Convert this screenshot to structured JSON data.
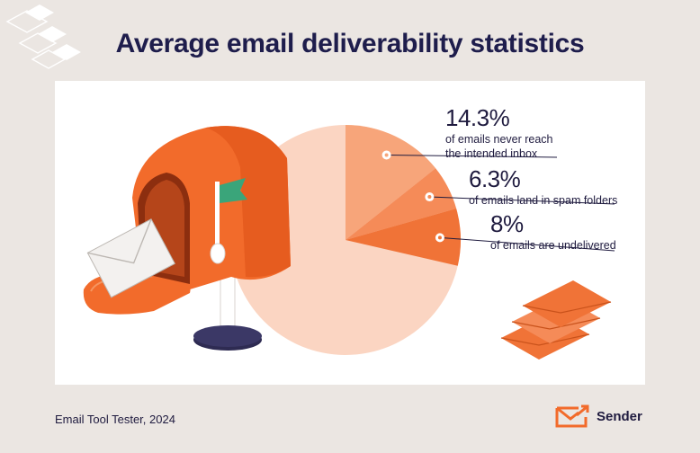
{
  "header": {
    "title": "Average email deliverability statistics"
  },
  "chart_data": {
    "type": "pie",
    "categories": [
      "emails never reach the intended inbox",
      "emails land in spam folders",
      "emails are undelivered"
    ],
    "values": [
      14.3,
      6.3,
      8
    ],
    "value_labels": [
      "14.3%",
      "6.3%",
      "8%"
    ],
    "descriptions": [
      [
        "of emails never reach",
        "the intended inbox"
      ],
      [
        "of emails land in spam folders"
      ],
      [
        "of emails are undelivered"
      ]
    ],
    "slice_colors": [
      "#f7a57a",
      "#f58b58",
      "#f07337"
    ],
    "remainder_color": "#fbd5c2",
    "legend": "annotations-right"
  },
  "footer": {
    "source": "Email Tool Tester, 2024",
    "brand": "Sender"
  },
  "colors": {
    "accent": "#f26b2b",
    "title": "#1e1d4c",
    "background": "#ebe6e2"
  },
  "icons": {
    "brand_logo": "envelope-arrow-icon",
    "illustration": "mailbox-icon",
    "envelopes": "envelope-stack-icon"
  }
}
